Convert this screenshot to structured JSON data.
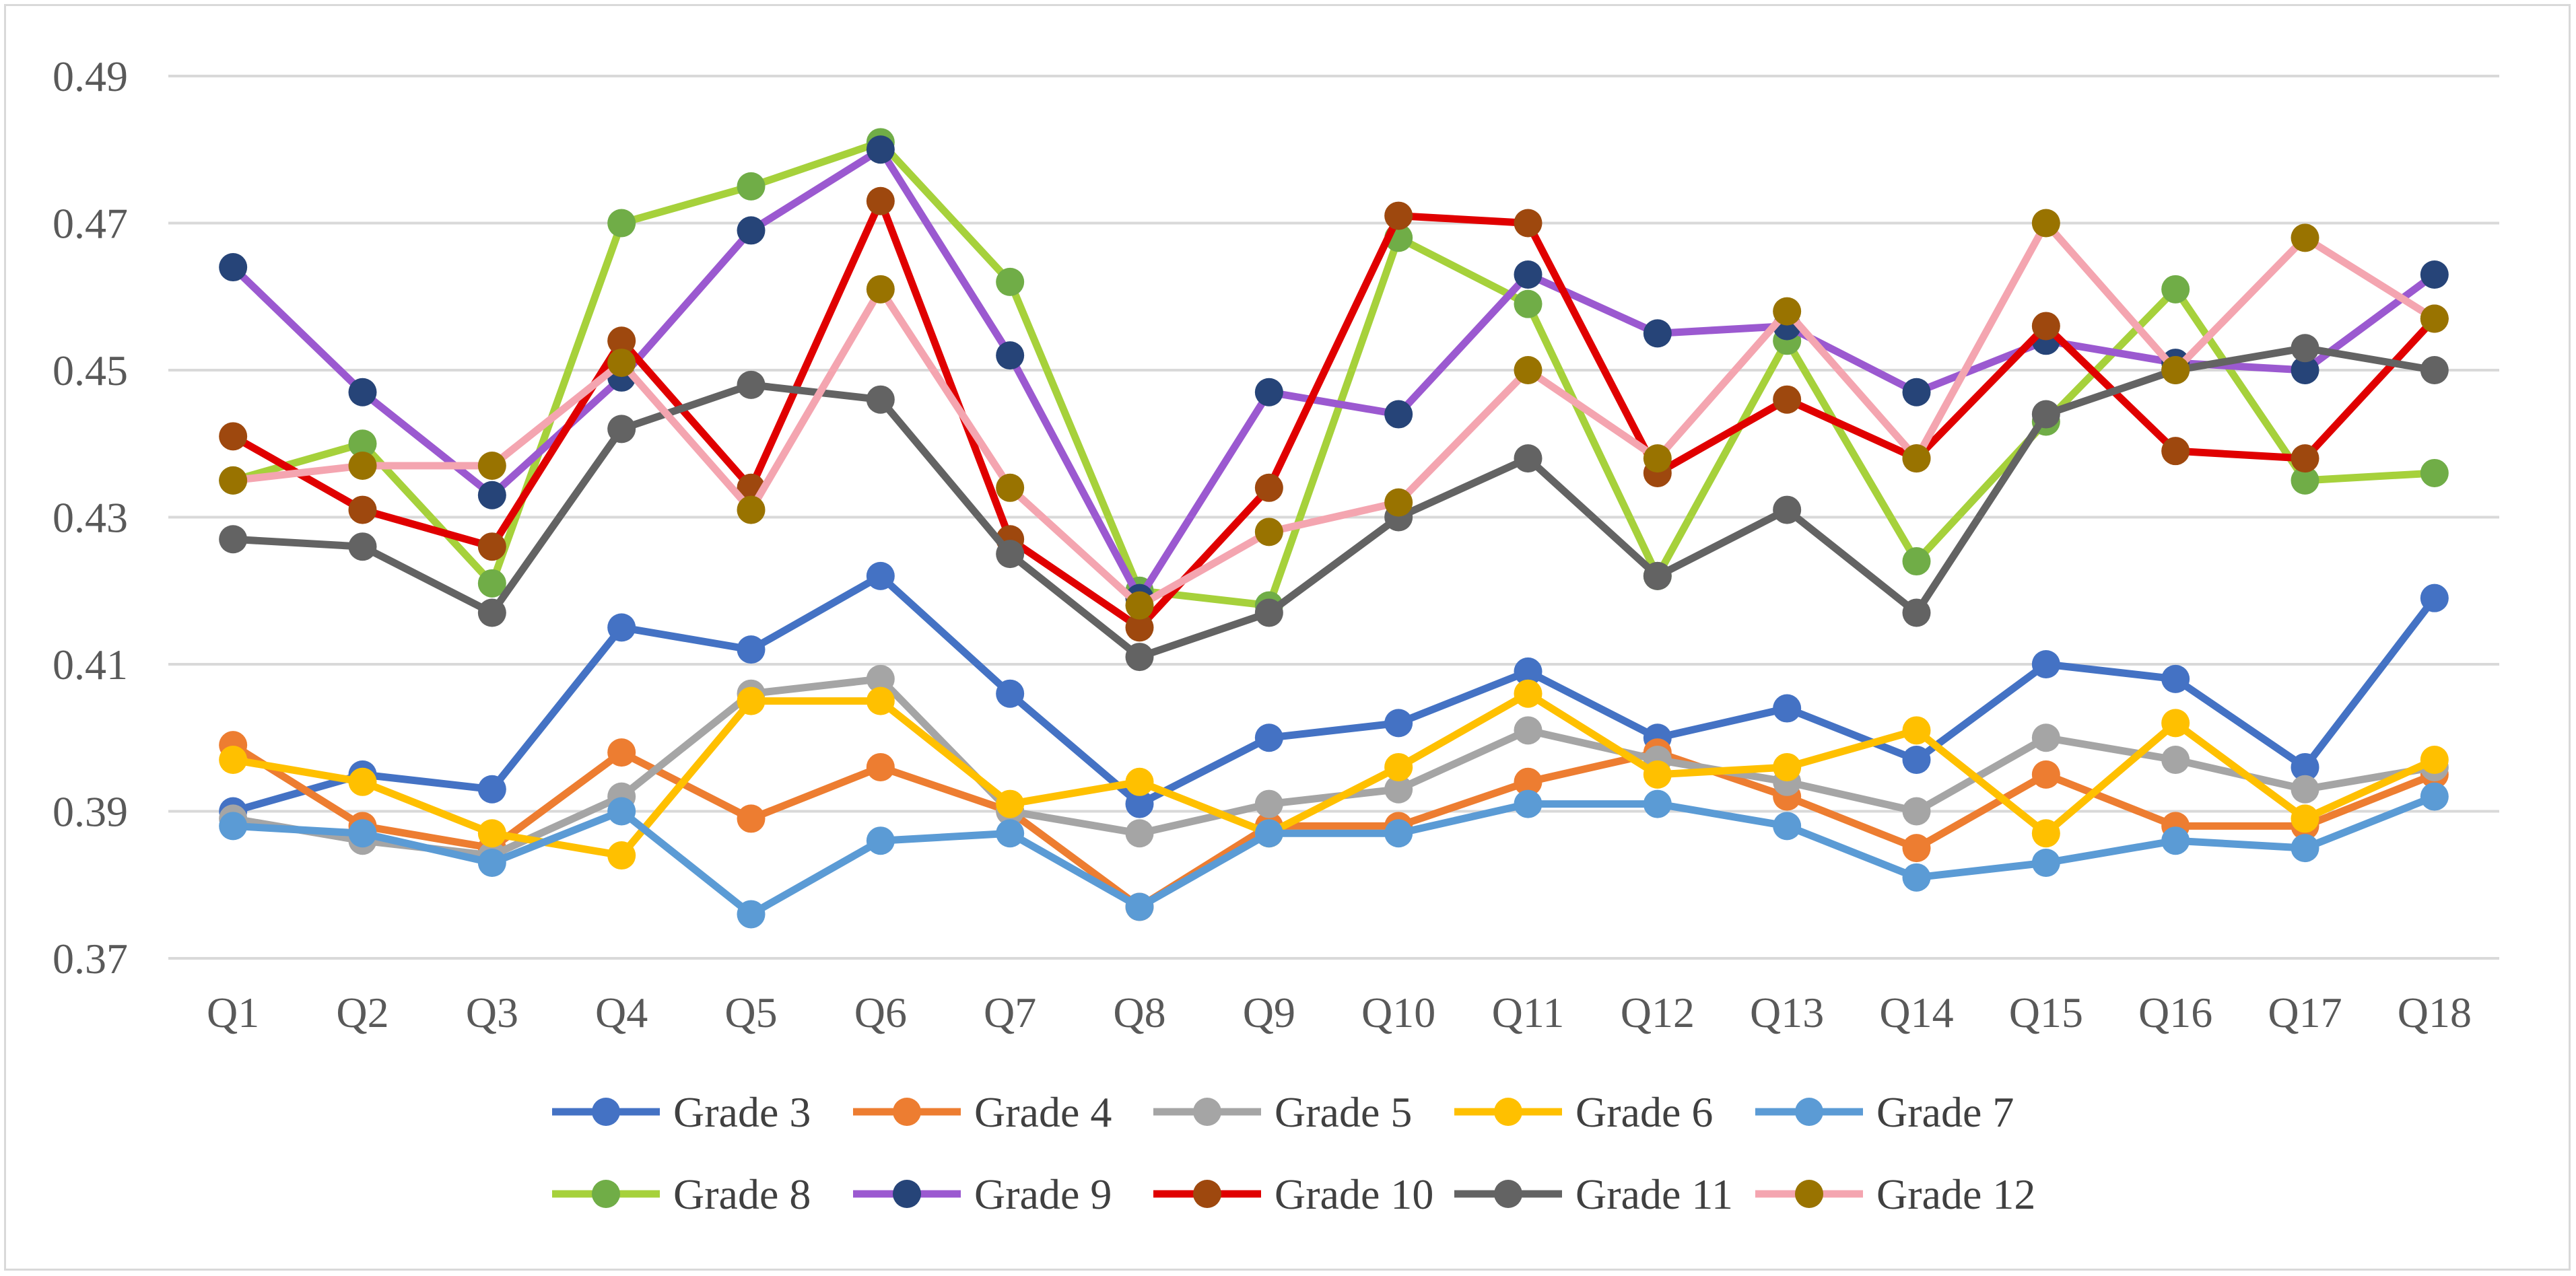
{
  "chart_data": {
    "type": "line",
    "title": "",
    "xlabel": "",
    "ylabel": "",
    "categories": [
      "Q1",
      "Q2",
      "Q3",
      "Q4",
      "Q5",
      "Q6",
      "Q7",
      "Q8",
      "Q9",
      "Q10",
      "Q11",
      "Q12",
      "Q13",
      "Q14",
      "Q15",
      "Q16",
      "Q17",
      "Q18"
    ],
    "ylim": [
      0.37,
      0.49
    ],
    "yticks": [
      "0.37",
      "0.39",
      "0.41",
      "0.43",
      "0.45",
      "0.47",
      "0.49"
    ],
    "grid": true,
    "legend_position": "bottom",
    "series": [
      {
        "name": "Grade 3",
        "line_color": "#4472c4",
        "marker_color": "#4472c4",
        "values": [
          0.39,
          0.395,
          0.393,
          0.415,
          0.412,
          0.422,
          0.406,
          0.391,
          0.4,
          0.402,
          0.409,
          0.4,
          0.404,
          0.397,
          0.41,
          0.408,
          0.396,
          0.419
        ]
      },
      {
        "name": "Grade 4",
        "line_color": "#ed7d31",
        "marker_color": "#ed7d31",
        "values": [
          0.399,
          0.388,
          0.385,
          0.398,
          0.389,
          0.396,
          0.39,
          0.377,
          0.388,
          0.388,
          0.394,
          0.398,
          0.392,
          0.385,
          0.395,
          0.388,
          0.388,
          0.395
        ]
      },
      {
        "name": "Grade 5",
        "line_color": "#a5a5a5",
        "marker_color": "#a5a5a5",
        "values": [
          0.389,
          0.386,
          0.384,
          0.392,
          0.406,
          0.408,
          0.39,
          0.387,
          0.391,
          0.393,
          0.401,
          0.397,
          0.394,
          0.39,
          0.4,
          0.397,
          0.393,
          0.396
        ]
      },
      {
        "name": "Grade 6",
        "line_color": "#ffc000",
        "marker_color": "#ffc000",
        "values": [
          0.397,
          0.394,
          0.387,
          0.384,
          0.405,
          0.405,
          0.391,
          0.394,
          0.387,
          0.396,
          0.406,
          0.395,
          0.396,
          0.401,
          0.387,
          0.402,
          0.389,
          0.397
        ]
      },
      {
        "name": "Grade 7",
        "line_color": "#5b9bd5",
        "marker_color": "#5b9bd5",
        "values": [
          0.388,
          0.387,
          0.383,
          0.39,
          0.376,
          0.386,
          0.387,
          0.377,
          0.387,
          0.387,
          0.391,
          0.391,
          0.388,
          0.381,
          0.383,
          0.386,
          0.385,
          0.392
        ]
      },
      {
        "name": "Grade 8",
        "line_color": "#a6d13b",
        "marker_color": "#70ad47",
        "values": [
          0.435,
          0.44,
          0.421,
          0.47,
          0.475,
          0.481,
          0.462,
          0.42,
          0.418,
          0.468,
          0.459,
          0.422,
          0.454,
          0.424,
          0.443,
          0.461,
          0.435,
          0.436
        ]
      },
      {
        "name": "Grade 9",
        "line_color": "#9b59d0",
        "marker_color": "#264478",
        "values": [
          0.464,
          0.447,
          0.433,
          0.449,
          0.469,
          0.48,
          0.452,
          0.419,
          0.447,
          0.444,
          0.463,
          0.455,
          0.456,
          0.447,
          0.454,
          0.451,
          0.45,
          0.463
        ]
      },
      {
        "name": "Grade 10",
        "line_color": "#e00000",
        "marker_color": "#9e480e",
        "values": [
          0.441,
          0.431,
          0.426,
          0.454,
          0.434,
          0.473,
          0.427,
          0.415,
          0.434,
          0.471,
          0.47,
          0.436,
          0.446,
          0.438,
          0.456,
          0.439,
          0.438,
          0.457
        ]
      },
      {
        "name": "Grade 11",
        "line_color": "#636363",
        "marker_color": "#636363",
        "values": [
          0.427,
          0.426,
          0.417,
          0.442,
          0.448,
          0.446,
          0.425,
          0.411,
          0.417,
          0.43,
          0.438,
          0.422,
          0.431,
          0.417,
          0.444,
          0.45,
          0.453,
          0.45
        ]
      },
      {
        "name": "Grade 12",
        "line_color": "#f4a5b0",
        "marker_color": "#997300",
        "values": [
          0.435,
          0.437,
          0.437,
          0.451,
          0.431,
          0.461,
          0.434,
          0.418,
          0.428,
          0.432,
          0.45,
          0.438,
          0.458,
          0.438,
          0.47,
          0.45,
          0.468,
          0.457
        ]
      }
    ]
  }
}
